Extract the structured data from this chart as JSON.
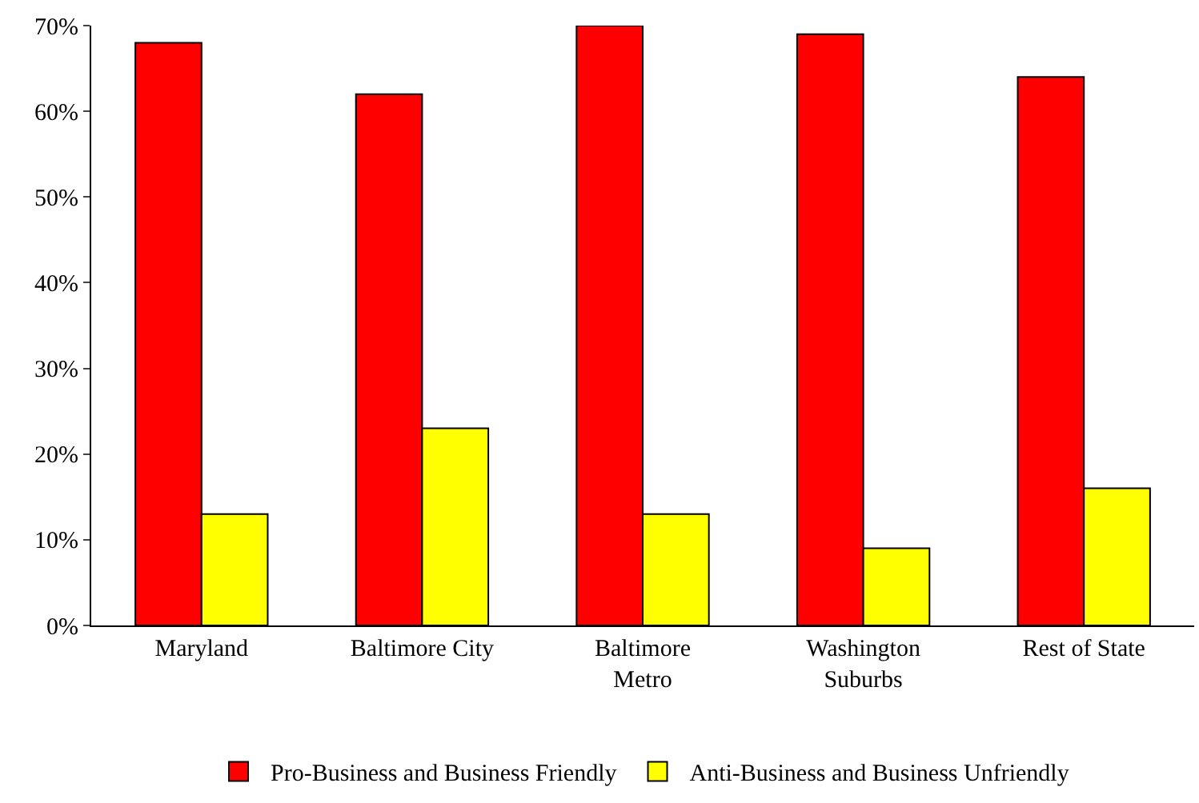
{
  "chart_data": {
    "type": "bar",
    "categories": [
      "Maryland",
      "Baltimore City",
      "Baltimore\nMetro",
      "Washington\nSuburbs",
      "Rest of State"
    ],
    "series": [
      {
        "name": "Pro-Business and Business Friendly",
        "color": "#ff0000",
        "values": [
          68,
          62,
          70,
          69,
          64
        ]
      },
      {
        "name": "Anti-Business and Business Unfriendly",
        "color": "#ffff00",
        "values": [
          13,
          23,
          13,
          9,
          16
        ]
      }
    ],
    "ylim": [
      0,
      70
    ],
    "yticks": [
      {
        "value": 0,
        "label": "0%"
      },
      {
        "value": 10,
        "label": "10%"
      },
      {
        "value": 20,
        "label": "20%"
      },
      {
        "value": 30,
        "label": "30%"
      },
      {
        "value": 40,
        "label": "40%"
      },
      {
        "value": 50,
        "label": "50%"
      },
      {
        "value": 60,
        "label": "60%"
      },
      {
        "value": 70,
        "label": "70%"
      }
    ],
    "grid": false,
    "legend": "bottom"
  }
}
